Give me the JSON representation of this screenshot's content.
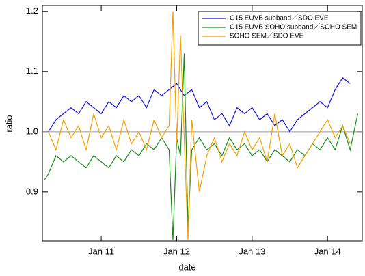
{
  "chart_data": {
    "type": "line",
    "xlabel": "date",
    "ylabel": "ratio",
    "xlim": [
      10.22,
      14.46
    ],
    "ylim": [
      0.818,
      1.21
    ],
    "xticks": [
      {
        "value": 11,
        "label": "Jan 11"
      },
      {
        "value": 12,
        "label": "Jan 12"
      },
      {
        "value": 13,
        "label": "Jan 13"
      },
      {
        "value": 14,
        "label": "Jan 14"
      }
    ],
    "yticks": [
      {
        "value": 0.9,
        "label": "0.9"
      },
      {
        "value": 1.0,
        "label": "1.0"
      },
      {
        "value": 1.1,
        "label": "1.1"
      },
      {
        "value": 1.2,
        "label": "1.2"
      }
    ],
    "reference_line": 1,
    "legend": "upper right",
    "series": [
      {
        "name": "G15 EUVB subband／SDO EVE",
        "color": "#1010e0",
        "x": [
          10.3,
          10.4,
          10.5,
          10.6,
          10.7,
          10.8,
          10.9,
          11.0,
          11.1,
          11.2,
          11.3,
          11.4,
          11.5,
          11.6,
          11.7,
          11.8,
          11.9,
          12.0,
          12.1,
          12.2,
          12.3,
          12.4,
          12.5,
          12.6,
          12.7,
          12.8,
          12.9,
          13.0,
          13.1,
          13.2,
          13.3,
          13.4,
          13.5,
          13.6,
          13.7,
          13.8,
          13.9,
          14.0,
          14.1,
          14.2,
          14.3
        ],
        "values": [
          1.0,
          1.02,
          1.03,
          1.04,
          1.03,
          1.05,
          1.04,
          1.03,
          1.05,
          1.04,
          1.06,
          1.05,
          1.06,
          1.04,
          1.07,
          1.06,
          1.07,
          1.08,
          1.06,
          1.07,
          1.04,
          1.05,
          1.02,
          1.03,
          1.01,
          1.04,
          1.03,
          1.04,
          1.02,
          1.03,
          1.01,
          1.02,
          1.0,
          1.02,
          1.03,
          1.04,
          1.05,
          1.04,
          1.07,
          1.09,
          1.08
        ]
      },
      {
        "name": "G15 EUVB SOHO subband／SOHO SEM",
        "color": "#1a8a1a",
        "x": [
          10.25,
          10.3,
          10.4,
          10.5,
          10.6,
          10.7,
          10.8,
          10.9,
          11.0,
          11.1,
          11.2,
          11.3,
          11.4,
          11.5,
          11.6,
          11.7,
          11.8,
          11.9,
          11.95,
          12.0,
          12.05,
          12.1,
          12.15,
          12.2,
          12.3,
          12.4,
          12.5,
          12.6,
          12.7,
          12.8,
          12.9,
          13.0,
          13.1,
          13.2,
          13.3,
          13.4,
          13.5,
          13.6,
          13.7,
          13.8,
          13.9,
          14.0,
          14.1,
          14.2,
          14.3,
          14.4
        ],
        "values": [
          0.92,
          0.93,
          0.96,
          0.95,
          0.96,
          0.95,
          0.94,
          0.96,
          0.95,
          0.94,
          0.96,
          0.95,
          0.97,
          0.96,
          0.98,
          0.97,
          0.99,
          0.97,
          0.82,
          0.99,
          0.96,
          1.13,
          0.84,
          0.97,
          0.99,
          0.97,
          0.98,
          0.96,
          0.99,
          0.97,
          0.98,
          0.96,
          0.97,
          0.95,
          0.97,
          0.96,
          0.95,
          0.97,
          0.96,
          0.98,
          0.97,
          0.99,
          0.97,
          1.01,
          0.97,
          1.03
        ]
      },
      {
        "name": "SOHO SEM／SDO EVE",
        "color": "#f5a000",
        "x": [
          10.3,
          10.4,
          10.5,
          10.6,
          10.7,
          10.8,
          10.9,
          11.0,
          11.1,
          11.2,
          11.3,
          11.4,
          11.5,
          11.6,
          11.7,
          11.8,
          11.9,
          11.95,
          12.0,
          12.05,
          12.1,
          12.15,
          12.2,
          12.3,
          12.4,
          12.5,
          12.6,
          12.7,
          12.8,
          12.9,
          13.0,
          13.1,
          13.2,
          13.3,
          13.4,
          13.5,
          13.6,
          13.7,
          13.8,
          13.9,
          14.0,
          14.1,
          14.2,
          14.3
        ],
        "values": [
          1.0,
          0.97,
          1.02,
          0.99,
          1.01,
          0.97,
          1.03,
          0.99,
          1.01,
          0.97,
          1.02,
          0.98,
          1.0,
          0.97,
          1.02,
          0.99,
          1.01,
          1.2,
          0.98,
          1.16,
          0.99,
          0.82,
          1.02,
          0.9,
          0.96,
          0.99,
          0.95,
          0.98,
          0.96,
          1.0,
          0.97,
          0.99,
          0.95,
          1.03,
          0.96,
          0.98,
          0.94,
          0.96,
          0.98,
          1.0,
          1.02,
          0.99,
          1.01,
          0.98
        ]
      }
    ]
  }
}
